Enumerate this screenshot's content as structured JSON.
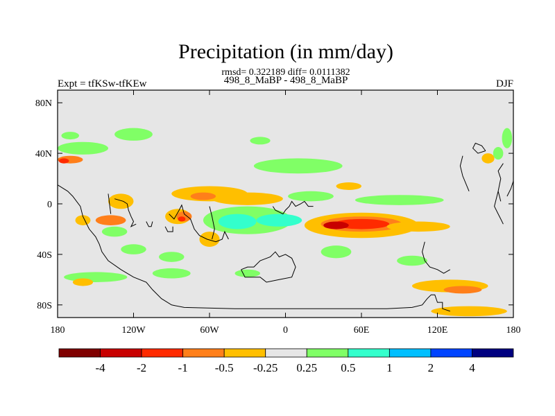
{
  "header": {
    "title": "Precipitation (in mm/day)",
    "stats": "rmsd= 0.322189 diff= 0.0111382",
    "subtitle": "498_8_MaBP - 498_8_MaBP",
    "left_label": "Expt = tfKSw-tfKEw",
    "season": "DJF"
  },
  "chart_data": {
    "type": "heatmap",
    "projection": "cylindrical-equidistant",
    "x_range": [
      -180,
      180
    ],
    "y_range": [
      -90,
      90
    ],
    "x_ticks": [
      {
        "value": -180,
        "label": "180"
      },
      {
        "value": -120,
        "label": "120W"
      },
      {
        "value": -60,
        "label": "60W"
      },
      {
        "value": 0,
        "label": "0"
      },
      {
        "value": 60,
        "label": "60E"
      },
      {
        "value": 120,
        "label": "120E"
      },
      {
        "value": 180,
        "label": "180"
      }
    ],
    "y_ticks": [
      {
        "value": 80,
        "label": "80N"
      },
      {
        "value": 40,
        "label": "40N"
      },
      {
        "value": 0,
        "label": "0"
      },
      {
        "value": -40,
        "label": "40S"
      },
      {
        "value": -80,
        "label": "80S"
      }
    ],
    "background_color": "#e6e6e6",
    "colorbar": {
      "colors": [
        "#7f0000",
        "#c80000",
        "#ff2a00",
        "#ff7f1a",
        "#ffbf00",
        "#e6e6e6",
        "#80ff66",
        "#33ffcc",
        "#00bfff",
        "#0044ff",
        "#000080"
      ],
      "labels": [
        "-4",
        "-2",
        "-1",
        "-0.5",
        "-0.25",
        "0.25",
        "0.5",
        "1",
        "2",
        "4"
      ]
    },
    "anomaly_patches": [
      {
        "lon": 60,
        "lat": -17,
        "rx": 45,
        "ry": 10,
        "value": -0.4
      },
      {
        "lon": 60,
        "lat": -16,
        "rx": 32,
        "ry": 6,
        "value": -0.7
      },
      {
        "lon": 60,
        "lat": -16,
        "rx": 22,
        "ry": 4,
        "value": -1.5
      },
      {
        "lon": 40,
        "lat": -17,
        "rx": 10,
        "ry": 3,
        "value": -3
      },
      {
        "lon": 105,
        "lat": -18,
        "rx": 25,
        "ry": 4,
        "value": -0.4
      },
      {
        "lon": -30,
        "lat": -13,
        "rx": 35,
        "ry": 11,
        "value": 0.3
      },
      {
        "lon": -38,
        "lat": -14,
        "rx": 15,
        "ry": 6,
        "value": 0.7
      },
      {
        "lon": -5,
        "lat": -13,
        "rx": 18,
        "ry": 5,
        "value": 0.6
      },
      {
        "lon": -60,
        "lat": 8,
        "rx": 30,
        "ry": 6,
        "value": -0.4
      },
      {
        "lon": -30,
        "lat": 4,
        "rx": 28,
        "ry": 5,
        "value": -0.4
      },
      {
        "lon": -65,
        "lat": 6,
        "rx": 10,
        "ry": 3,
        "value": -0.7
      },
      {
        "lon": -85,
        "lat": -10,
        "rx": 10,
        "ry": 6,
        "value": -0.4
      },
      {
        "lon": -80,
        "lat": -10,
        "rx": 6,
        "ry": 4,
        "value": -0.8
      },
      {
        "lon": -82,
        "lat": -12,
        "rx": 3,
        "ry": 2,
        "value": -1.5
      },
      {
        "lon": -60,
        "lat": -28,
        "rx": 8,
        "ry": 6,
        "value": -0.4
      },
      {
        "lon": -130,
        "lat": 2,
        "rx": 10,
        "ry": 6,
        "value": -0.3
      },
      {
        "lon": -138,
        "lat": -13,
        "rx": 12,
        "ry": 4,
        "value": -0.6
      },
      {
        "lon": -160,
        "lat": -13,
        "rx": 6,
        "ry": 4,
        "value": -0.5
      },
      {
        "lon": -170,
        "lat": 35,
        "rx": 10,
        "ry": 3,
        "value": -0.6
      },
      {
        "lon": -175,
        "lat": 34,
        "rx": 4,
        "ry": 2,
        "value": -1.5
      },
      {
        "lon": -160,
        "lat": 44,
        "rx": 20,
        "ry": 5,
        "value": 0.3
      },
      {
        "lon": -120,
        "lat": 55,
        "rx": 15,
        "ry": 5,
        "value": 0.3
      },
      {
        "lon": -170,
        "lat": 54,
        "rx": 7,
        "ry": 3,
        "value": 0.3
      },
      {
        "lon": 10,
        "lat": 30,
        "rx": 35,
        "ry": 6,
        "value": 0.3
      },
      {
        "lon": -20,
        "lat": 50,
        "rx": 8,
        "ry": 3,
        "value": 0.3
      },
      {
        "lon": 90,
        "lat": 3,
        "rx": 35,
        "ry": 4,
        "value": 0.3
      },
      {
        "lon": 20,
        "lat": 6,
        "rx": 18,
        "ry": 4,
        "value": 0.4
      },
      {
        "lon": 50,
        "lat": 14,
        "rx": 10,
        "ry": 3,
        "value": -0.3
      },
      {
        "lon": 40,
        "lat": -38,
        "rx": 12,
        "ry": 5,
        "value": 0.3
      },
      {
        "lon": -120,
        "lat": -36,
        "rx": 10,
        "ry": 4,
        "value": 0.3
      },
      {
        "lon": -150,
        "lat": -58,
        "rx": 25,
        "ry": 4,
        "value": 0.3
      },
      {
        "lon": -90,
        "lat": -55,
        "rx": 15,
        "ry": 4,
        "value": 0.3
      },
      {
        "lon": -30,
        "lat": -55,
        "rx": 10,
        "ry": 3,
        "value": 0.3
      },
      {
        "lon": 130,
        "lat": -65,
        "rx": 30,
        "ry": 5,
        "value": -0.3
      },
      {
        "lon": 140,
        "lat": -68,
        "rx": 15,
        "ry": 3,
        "value": -0.6
      },
      {
        "lon": 145,
        "lat": -85,
        "rx": 30,
        "ry": 4,
        "value": -0.3
      },
      {
        "lon": -160,
        "lat": -62,
        "rx": 8,
        "ry": 3,
        "value": -0.3
      },
      {
        "lon": 100,
        "lat": -45,
        "rx": 12,
        "ry": 4,
        "value": 0.3
      },
      {
        "lon": -90,
        "lat": -42,
        "rx": 10,
        "ry": 4,
        "value": 0.3
      },
      {
        "lon": -135,
        "lat": -22,
        "rx": 10,
        "ry": 4,
        "value": 0.3
      },
      {
        "lon": 160,
        "lat": 36,
        "rx": 5,
        "ry": 4,
        "value": -0.5
      },
      {
        "lon": 168,
        "lat": 40,
        "rx": 4,
        "ry": 5,
        "value": 0.3
      },
      {
        "lon": 175,
        "lat": 52,
        "rx": 4,
        "ry": 8,
        "value": 0.3
      }
    ],
    "coastlines": [
      [
        [
          -180,
          15
        ],
        [
          -172,
          10
        ],
        [
          -168,
          6
        ],
        [
          -165,
          2
        ],
        [
          -162,
          -2
        ],
        [
          -160,
          -10
        ],
        [
          -158,
          -14
        ],
        [
          -155,
          -20
        ],
        [
          -150,
          -26
        ],
        [
          -147,
          -32
        ],
        [
          -145,
          -38
        ],
        [
          -140,
          -45
        ],
        [
          -130,
          -52
        ],
        [
          -120,
          -58
        ],
        [
          -110,
          -62
        ],
        [
          -105,
          -68
        ],
        [
          -98,
          -75
        ],
        [
          -90,
          -80
        ],
        [
          -80,
          -82
        ],
        [
          -40,
          -83
        ],
        [
          0,
          -83
        ],
        [
          40,
          -83
        ],
        [
          80,
          -83
        ],
        [
          100,
          -82
        ],
        [
          108,
          -80
        ],
        [
          112,
          -75
        ],
        [
          115,
          -72
        ],
        [
          118,
          -72
        ],
        [
          120,
          -78
        ],
        [
          124,
          -78
        ],
        [
          124,
          -83
        ],
        [
          130,
          -85
        ]
      ],
      [
        [
          -135,
          4
        ],
        [
          -128,
          2
        ],
        [
          -125,
          0
        ],
        [
          -124,
          -5
        ],
        [
          -122,
          -10
        ],
        [
          -120,
          -14
        ],
        [
          -122,
          -18
        ],
        [
          -118,
          -16
        ]
      ],
      [
        [
          -140,
          8
        ],
        [
          -138,
          -8
        ]
      ],
      [
        [
          -110,
          -14
        ],
        [
          -108,
          -18
        ],
        [
          -106,
          -18
        ],
        [
          -105,
          -14
        ]
      ],
      [
        [
          -95,
          -18
        ],
        [
          -93,
          -22
        ],
        [
          -89,
          -22
        ],
        [
          -89,
          -18
        ]
      ],
      [
        [
          -92,
          -8
        ],
        [
          -88,
          -12
        ],
        [
          -84,
          -5
        ],
        [
          -82,
          -1
        ],
        [
          -80,
          -8
        ],
        [
          -75,
          -12
        ],
        [
          -72,
          -20
        ],
        [
          -68,
          -25
        ],
        [
          -62,
          -28
        ],
        [
          -55,
          -30
        ],
        [
          -50,
          -28
        ],
        [
          -48,
          -22
        ],
        [
          -45,
          -28
        ]
      ],
      [
        [
          -60,
          -2
        ],
        [
          -58,
          -10
        ],
        [
          -56,
          -20
        ],
        [
          -58,
          -28
        ]
      ],
      [
        [
          -10,
          -2
        ],
        [
          -8,
          -5
        ],
        [
          -2,
          -8
        ],
        [
          0,
          -5
        ],
        [
          3,
          -2
        ],
        [
          5,
          2
        ],
        [
          8,
          -2
        ],
        [
          12,
          0
        ],
        [
          15,
          2
        ],
        [
          18,
          -2
        ],
        [
          22,
          -2
        ]
      ],
      [
        [
          -35,
          -52
        ],
        [
          -30,
          -50
        ],
        [
          -25,
          -50
        ],
        [
          -20,
          -45
        ],
        [
          -12,
          -42
        ],
        [
          -8,
          -38
        ],
        [
          -5,
          -42
        ],
        [
          0,
          -40
        ],
        [
          5,
          -43
        ],
        [
          8,
          -50
        ],
        [
          5,
          -58
        ],
        [
          -5,
          -60
        ],
        [
          -15,
          -62
        ],
        [
          -20,
          -58
        ],
        [
          -32,
          -58
        ],
        [
          -35,
          -52
        ]
      ],
      [
        [
          158,
          42
        ],
        [
          155,
          46
        ],
        [
          150,
          48
        ],
        [
          148,
          44
        ],
        [
          152,
          40
        ],
        [
          158,
          42
        ]
      ],
      [
        [
          145,
          10
        ],
        [
          140,
          22
        ],
        [
          138,
          30
        ],
        [
          140,
          38
        ]
      ],
      [
        [
          170,
          2
        ],
        [
          168,
          10
        ],
        [
          170,
          20
        ],
        [
          168,
          26
        ],
        [
          172,
          32
        ]
      ],
      [
        [
          175,
          6
        ],
        [
          178,
          12
        ],
        [
          180,
          18
        ]
      ],
      [
        [
          110,
          -30
        ],
        [
          108,
          -38
        ],
        [
          110,
          -45
        ],
        [
          114,
          -50
        ],
        [
          120,
          -52
        ],
        [
          125,
          -55
        ],
        [
          130,
          -52
        ]
      ],
      [
        [
          172,
          -16
        ],
        [
          170,
          -12
        ],
        [
          168,
          -8
        ],
        [
          165,
          -2
        ],
        [
          168,
          10
        ]
      ]
    ]
  }
}
